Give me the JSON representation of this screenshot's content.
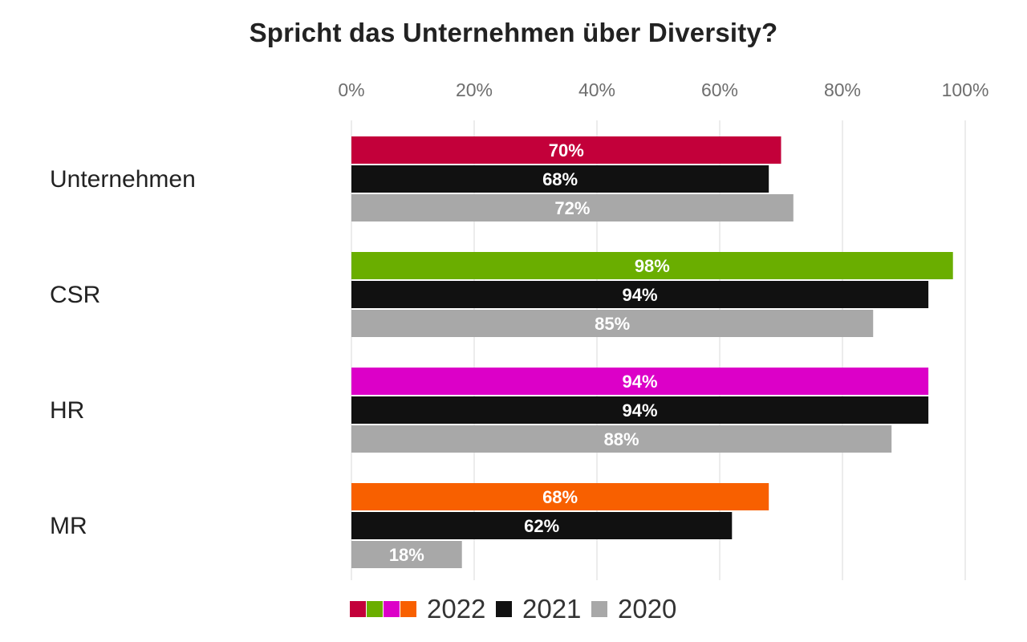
{
  "chart_data": {
    "type": "bar",
    "orientation": "horizontal",
    "title": "Spricht das Unternehmen über Diversity?",
    "categories": [
      "Unternehmen",
      "CSR",
      "HR",
      "MR"
    ],
    "series": [
      {
        "name": "2022",
        "values": [
          70,
          98,
          94,
          68
        ],
        "labels": [
          "70%",
          "98%",
          "94%",
          "68%"
        ],
        "colors": [
          "#c3003a",
          "#6aae00",
          "#dc00c8",
          "#f86000"
        ]
      },
      {
        "name": "2021",
        "values": [
          68,
          94,
          94,
          62
        ],
        "labels": [
          "68%",
          "94%",
          "94%",
          "62%"
        ],
        "colors": [
          "#111111",
          "#111111",
          "#111111",
          "#111111"
        ]
      },
      {
        "name": "2020",
        "values": [
          72,
          85,
          88,
          18
        ],
        "labels": [
          "72%",
          "85%",
          "88%",
          "18%"
        ],
        "colors": [
          "#a8a8a8",
          "#a8a8a8",
          "#a8a8a8",
          "#a8a8a8"
        ]
      }
    ],
    "xlim": [
      0,
      100
    ],
    "xticks": [
      "0%",
      "20%",
      "40%",
      "60%",
      "80%",
      "100%"
    ],
    "xaxis_position": "top",
    "grid": true,
    "grid_color": "#d9d9d9",
    "legend_position": "bottom",
    "legend": [
      {
        "label": "2022",
        "swatches": [
          "#c3003a",
          "#6aae00",
          "#dc00c8",
          "#f86000"
        ]
      },
      {
        "label": "2021",
        "swatches": [
          "#111111"
        ]
      },
      {
        "label": "2020",
        "swatches": [
          "#a8a8a8"
        ]
      }
    ]
  }
}
